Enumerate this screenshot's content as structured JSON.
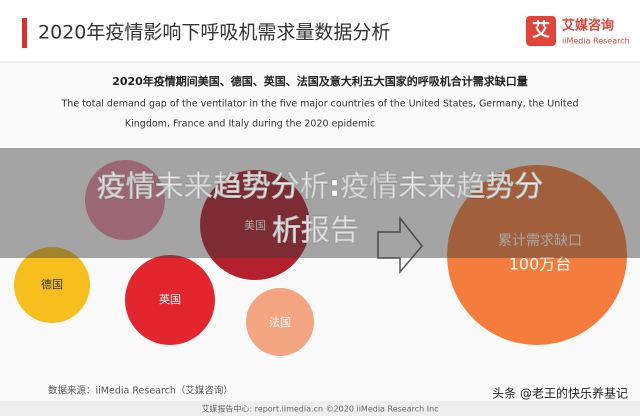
{
  "header": {
    "title": "2020年疫情影响下呼吸机需求量数据分析",
    "logo_icon": "艾",
    "logo_name": "艾媒咨询",
    "logo_en": "iiMedia Research"
  },
  "subtitle": {
    "cn": "2020年疫情期间美国、德国、英国、法国及意大利五大国家的呼吸机合计需求缺口量",
    "en_line1": "The total demand gap of the ventilator in the five major countries of the United States, Germany, the United",
    "en_line2": "Kingdom, France and Italy during the 2020 epidemic"
  },
  "overlay": {
    "line1": "疫情未来趋势分析:疫情未来趋势分",
    "line2": "析报告"
  },
  "bubbles": [
    {
      "label": "美国"
    },
    {
      "label": "德国"
    },
    {
      "label": "英国"
    },
    {
      "label": "法国"
    }
  ],
  "total": {
    "label": "累计需求缺口",
    "value": "100万台"
  },
  "source": "数据来源：iiMedia Research（艾媒咨询）",
  "watermark": "头条 @老王的快乐养基记",
  "footer": "艾媒报告中心: report.iimedia.cn ©2020 iiMedia Research Inc"
}
